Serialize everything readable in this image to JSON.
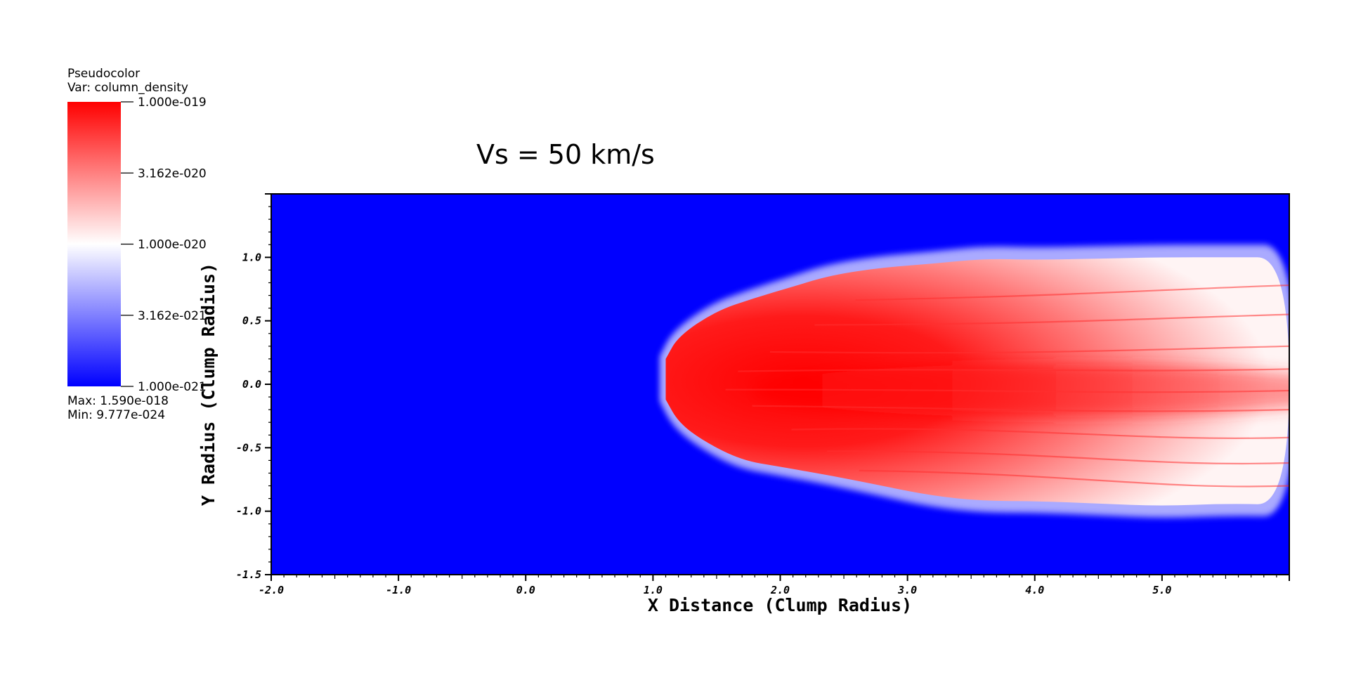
{
  "legend": {
    "plot_type": "Pseudocolor",
    "var_line": "Var: column_density",
    "max_line": "Max:  1.590e-018",
    "min_line": "Min:  9.777e-024",
    "colorbar_labels": [
      "1.000e-019",
      "3.162e-020",
      "1.000e-020",
      "3.162e-021",
      "1.000e-021"
    ],
    "colors": {
      "high": "#ff0000",
      "mid": "#ffffff",
      "low": "#0000ff"
    }
  },
  "chart_data": {
    "type": "heatmap",
    "title": "Vs = 50 km/s",
    "xlabel": "X Distance (Clump Radius)",
    "ylabel": "Y Radius (Clump Radius)",
    "xlim": [
      -2.0,
      6.0
    ],
    "ylim": [
      -1.5,
      1.5
    ],
    "x_ticks": [
      -2.0,
      -1.0,
      0.0,
      1.0,
      2.0,
      3.0,
      4.0,
      5.0
    ],
    "x_tick_labels": [
      "-2.0",
      "-1.0",
      "0.0",
      "1.0",
      "2.0",
      "3.0",
      "4.0",
      "5.0"
    ],
    "y_ticks": [
      -1.5,
      -1.0,
      -0.5,
      0.0,
      0.5,
      1.0
    ],
    "y_tick_labels": [
      "-1.5",
      "-1.0",
      "-0.5",
      "0.0",
      "0.5",
      "1.0"
    ],
    "colorscale": "log",
    "color_range": [
      1e-21,
      1e-19
    ],
    "background_color": "#0000ff",
    "features": {
      "cloud_outline_top": [
        [
          1.1,
          0.2
        ],
        [
          1.2,
          0.38
        ],
        [
          1.5,
          0.58
        ],
        [
          1.8,
          0.68
        ],
        [
          2.1,
          0.77
        ],
        [
          2.4,
          0.86
        ],
        [
          2.8,
          0.92
        ],
        [
          3.2,
          0.95
        ],
        [
          3.6,
          0.99
        ],
        [
          4.0,
          0.98
        ],
        [
          4.5,
          0.99
        ],
        [
          5.0,
          1.0
        ],
        [
          5.5,
          1.0
        ],
        [
          6.0,
          1.0
        ]
      ],
      "cloud_outline_bottom": [
        [
          6.0,
          -0.95
        ],
        [
          5.5,
          -0.94
        ],
        [
          5.0,
          -0.96
        ],
        [
          4.5,
          -0.94
        ],
        [
          4.0,
          -0.92
        ],
        [
          3.6,
          -0.92
        ],
        [
          3.2,
          -0.88
        ],
        [
          2.8,
          -0.8
        ],
        [
          2.4,
          -0.72
        ],
        [
          2.0,
          -0.65
        ],
        [
          1.7,
          -0.6
        ],
        [
          1.4,
          -0.45
        ],
        [
          1.2,
          -0.3
        ],
        [
          1.1,
          -0.12
        ]
      ],
      "dense_core_center": [
        1.9,
        -0.05
      ]
    }
  }
}
